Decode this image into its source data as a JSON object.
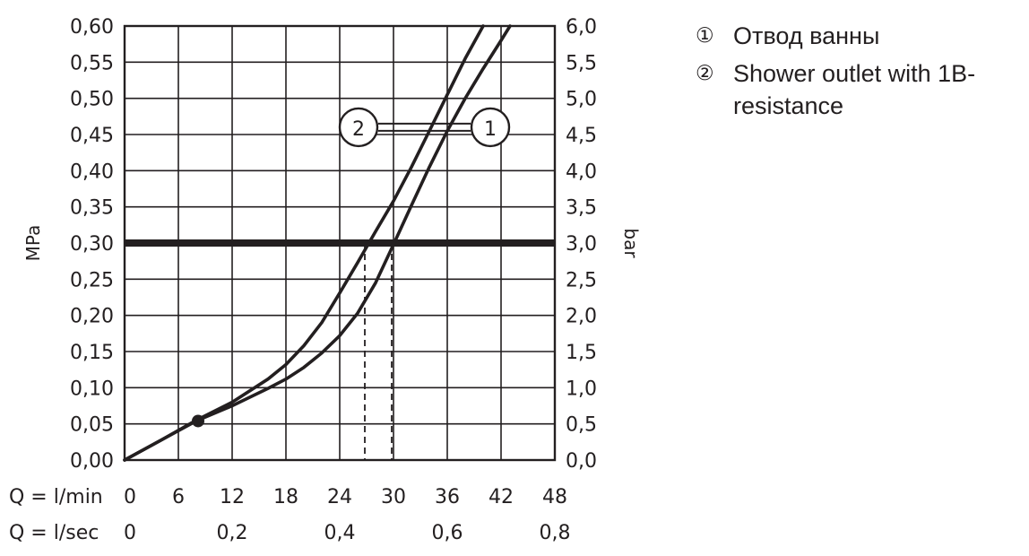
{
  "chart_data": {
    "type": "line",
    "title": "",
    "left_axis": {
      "label": "MPa",
      "range": [
        0,
        0.6
      ],
      "ticks": [
        "0,00",
        "0,05",
        "0,10",
        "0,15",
        "0,20",
        "0,25",
        "0,30",
        "0,35",
        "0,40",
        "0,45",
        "0,50",
        "0,55",
        "0,60"
      ]
    },
    "right_axis": {
      "label": "bar",
      "ticks": [
        "0,0",
        "0,5",
        "1,0",
        "1,5",
        "2,0",
        "2,5",
        "3,0",
        "3,5",
        "4,0",
        "4,5",
        "5,0",
        "5,5",
        "6,0"
      ]
    },
    "x_axis_lmin": {
      "label": "Q = l/min",
      "range": [
        0,
        48
      ],
      "ticks": [
        "0",
        "6",
        "12",
        "18",
        "24",
        "30",
        "36",
        "42",
        "48"
      ]
    },
    "x_axis_lsec": {
      "label": "Q = l/sec",
      "tick_values": [
        0,
        12,
        24,
        36,
        48
      ],
      "ticks": [
        "0",
        "0,2",
        "0,4",
        "0,6",
        "0,8"
      ]
    },
    "grid": true,
    "reference_line": {
      "y": 0.3
    },
    "series": [
      {
        "name": "1",
        "x": [
          0,
          4,
          8,
          12,
          16,
          18,
          20,
          22,
          24,
          26,
          28,
          30,
          32,
          34,
          36,
          38,
          40,
          42,
          43
        ],
        "y": [
          0,
          0.027,
          0.054,
          0.075,
          0.099,
          0.112,
          0.128,
          0.148,
          0.172,
          0.203,
          0.245,
          0.298,
          0.352,
          0.405,
          0.455,
          0.5,
          0.541,
          0.58,
          0.6
        ]
      },
      {
        "name": "2",
        "x": [
          0,
          4,
          8,
          12,
          16,
          18,
          20,
          22,
          24,
          26,
          28,
          30,
          32,
          34,
          36,
          38,
          40
        ],
        "y": [
          0,
          0.027,
          0.055,
          0.08,
          0.112,
          0.132,
          0.158,
          0.19,
          0.231,
          0.273,
          0.316,
          0.358,
          0.405,
          0.455,
          0.505,
          0.555,
          0.6
        ]
      }
    ],
    "flow_markers": [
      {
        "series": "2",
        "x": 26.8,
        "y": 0.3
      },
      {
        "series": "1",
        "x": 29.8,
        "y": 0.3
      }
    ],
    "point_marker": {
      "x": 8.2,
      "y": 0.054
    },
    "callouts": {
      "label_2": "2",
      "label_1": "1",
      "y": 0.46
    }
  },
  "legend": {
    "items": [
      {
        "marker": "①",
        "text": "Отвод ванны"
      },
      {
        "marker": "②",
        "text": "Shower outlet with 1B-resistance"
      }
    ]
  }
}
